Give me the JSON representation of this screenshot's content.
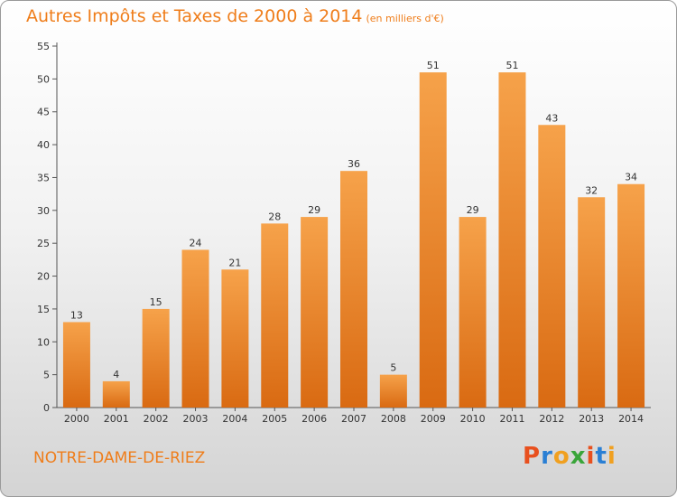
{
  "chart_data": {
    "type": "bar",
    "title": "Autres Impôts et Taxes de 2000 à 2014",
    "unit": "(en milliers d'€)",
    "categories": [
      "2000",
      "2001",
      "2002",
      "2003",
      "2004",
      "2005",
      "2006",
      "2007",
      "2008",
      "2009",
      "2010",
      "2011",
      "2012",
      "2013",
      "2014"
    ],
    "values": [
      13,
      4,
      15,
      24,
      21,
      28,
      29,
      36,
      5,
      51,
      29,
      51,
      43,
      32,
      34
    ],
    "ylim": [
      0,
      55
    ],
    "yticks": [
      0,
      5,
      10,
      15,
      20,
      25,
      30,
      35,
      40,
      45,
      50,
      55
    ],
    "grid": false,
    "bar_color": "#f0892a"
  },
  "footer": {
    "commune": "NOTRE-DAME-DE-RIEZ",
    "logo": "Proxiti"
  },
  "colors": {
    "accent": "#ef7d1a",
    "logo_letters": [
      "#e8501e",
      "#2a7fd4",
      "#f0a020",
      "#3aa53a",
      "#e8501e",
      "#2a7fd4",
      "#f0a020"
    ]
  }
}
